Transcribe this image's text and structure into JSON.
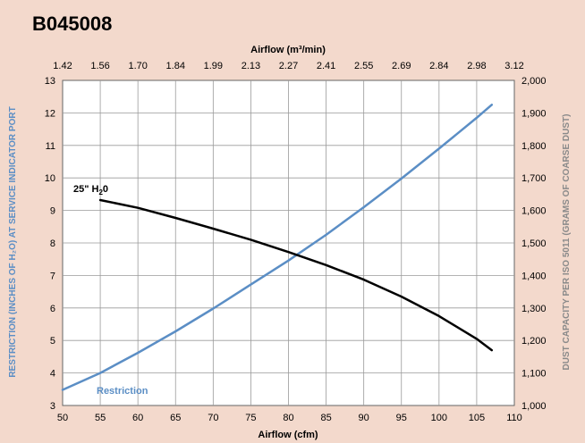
{
  "chart_data": {
    "type": "line",
    "title": "B045008",
    "xlabel": "Airflow (cfm)",
    "x2label": "Airflow (m³/min)",
    "ylabel": "RESTRICTION (INCHES OF H₂O) AT SERVICE INDICATOR PORT",
    "y2label": "DUST CAPACITY PER ISO 5011 (GRAMS OF COARSE DUST)",
    "xlim": [
      50,
      110
    ],
    "ylim": [
      3,
      13
    ],
    "y2lim": [
      1000,
      2000
    ],
    "grid": true,
    "x_ticks": [
      "50",
      "55",
      "60",
      "65",
      "70",
      "75",
      "80",
      "85",
      "90",
      "95",
      "100",
      "105",
      "110"
    ],
    "x2_ticks": [
      "1.42",
      "1.56",
      "1.70",
      "1.84",
      "1.99",
      "2.13",
      "2.27",
      "2.41",
      "2.55",
      "2.69",
      "2.84",
      "2.98",
      "3.12"
    ],
    "y_ticks": [
      "3",
      "4",
      "5",
      "6",
      "7",
      "8",
      "9",
      "10",
      "11",
      "12",
      "13"
    ],
    "y2_ticks": [
      "1,000",
      "1,100",
      "1,200",
      "1,300",
      "1,400",
      "1,500",
      "1,600",
      "1,700",
      "1,800",
      "1,900",
      "2,000"
    ],
    "series": [
      {
        "name": "Restriction",
        "axis": "left",
        "color": "#5b8ec5",
        "x": [
          50,
          55,
          60,
          65,
          70,
          75,
          80,
          85,
          90,
          95,
          100,
          105,
          107
        ],
        "y": [
          3.48,
          4.0,
          4.62,
          5.28,
          5.98,
          6.72,
          7.46,
          8.25,
          9.1,
          9.98,
          10.9,
          11.85,
          12.25
        ]
      },
      {
        "name": "25\" H₂0",
        "axis": "right",
        "color": "#000000",
        "x": [
          55,
          60,
          65,
          70,
          75,
          80,
          85,
          90,
          95,
          100,
          105,
          107
        ],
        "y": [
          1632,
          1608,
          1577,
          1544,
          1510,
          1472,
          1432,
          1387,
          1335,
          1275,
          1205,
          1170
        ]
      }
    ]
  }
}
